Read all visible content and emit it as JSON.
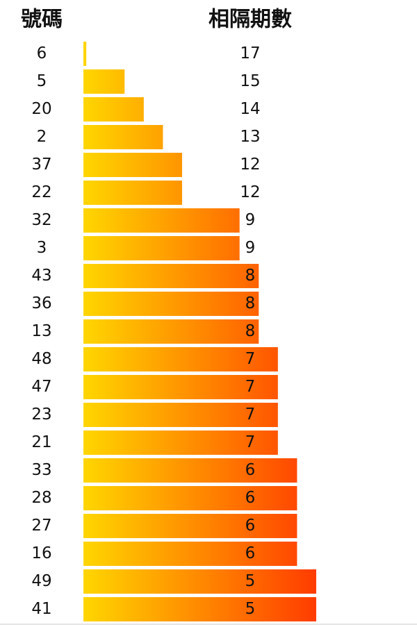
{
  "chart_data": {
    "type": "bar",
    "orientation": "horizontal",
    "category_header": "號碼",
    "value_header": "相隔期數",
    "categories": [
      "6",
      "5",
      "20",
      "2",
      "37",
      "22",
      "32",
      "3",
      "43",
      "36",
      "13",
      "48",
      "47",
      "23",
      "21",
      "33",
      "28",
      "27",
      "16",
      "49",
      "41"
    ],
    "values": [
      17,
      15,
      14,
      13,
      12,
      12,
      9,
      9,
      8,
      8,
      8,
      7,
      7,
      7,
      7,
      6,
      6,
      6,
      6,
      5,
      5
    ],
    "xlim": [
      17.15,
      5
    ],
    "gradient_colors": [
      "#ffd600",
      "#ff3c00"
    ]
  }
}
